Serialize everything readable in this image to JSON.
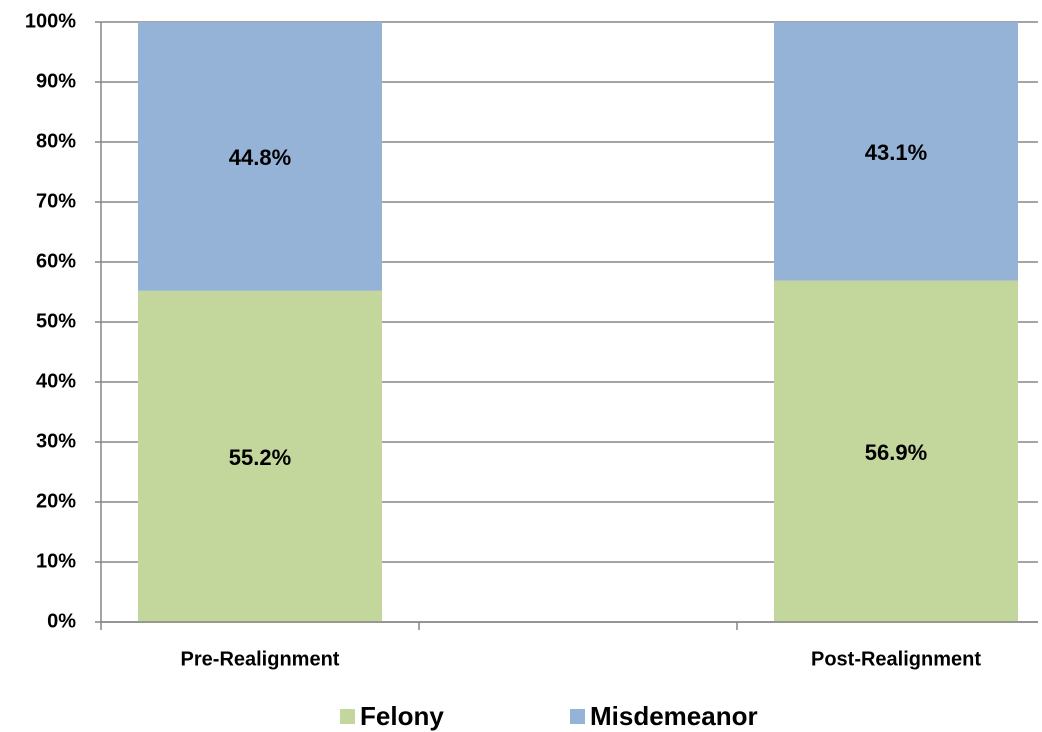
{
  "chart_data": {
    "type": "stacked_bar",
    "categories": [
      "Pre-Realignment",
      null,
      "Post-Realignment"
    ],
    "series": [
      {
        "name": "Felony",
        "color": "#c3d69b",
        "values": [
          55.2,
          null,
          56.9
        ],
        "value_labels": [
          "55.2%",
          null,
          "56.9%"
        ]
      },
      {
        "name": "Misdemeanor",
        "color": "#95b3d7",
        "values": [
          44.8,
          null,
          43.1
        ],
        "value_labels": [
          "44.8%",
          null,
          "43.1%"
        ]
      }
    ],
    "ylim": [
      0,
      100
    ],
    "yticks": [
      {
        "value": 0,
        "label": "0%"
      },
      {
        "value": 10,
        "label": "10%"
      },
      {
        "value": 20,
        "label": "20%"
      },
      {
        "value": 30,
        "label": "30%"
      },
      {
        "value": 40,
        "label": "40%"
      },
      {
        "value": 50,
        "label": "50%"
      },
      {
        "value": 60,
        "label": "60%"
      },
      {
        "value": 70,
        "label": "70%"
      },
      {
        "value": 80,
        "label": "80%"
      },
      {
        "value": 90,
        "label": "90%"
      },
      {
        "value": 100,
        "label": "100%"
      }
    ],
    "grid": true,
    "legend": "bottom"
  }
}
